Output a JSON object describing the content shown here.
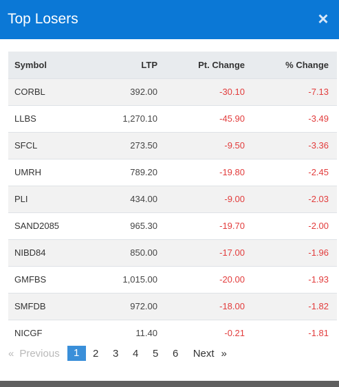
{
  "modal": {
    "title": "Top Losers",
    "close_glyph": "×"
  },
  "table": {
    "headers": {
      "symbol": "Symbol",
      "ltp": "LTP",
      "pt_change": "Pt. Change",
      "pct_change": "% Change"
    },
    "rows": [
      {
        "symbol": "CORBL",
        "ltp": "392.00",
        "pt_change": "-30.10",
        "pct_change": "-7.13"
      },
      {
        "symbol": "LLBS",
        "ltp": "1,270.10",
        "pt_change": "-45.90",
        "pct_change": "-3.49"
      },
      {
        "symbol": "SFCL",
        "ltp": "273.50",
        "pt_change": "-9.50",
        "pct_change": "-3.36"
      },
      {
        "symbol": "UMRH",
        "ltp": "789.20",
        "pt_change": "-19.80",
        "pct_change": "-2.45"
      },
      {
        "symbol": "PLI",
        "ltp": "434.00",
        "pt_change": "-9.00",
        "pct_change": "-2.03"
      },
      {
        "symbol": "SAND2085",
        "ltp": "965.30",
        "pt_change": "-19.70",
        "pct_change": "-2.00"
      },
      {
        "symbol": "NIBD84",
        "ltp": "850.00",
        "pt_change": "-17.00",
        "pct_change": "-1.96"
      },
      {
        "symbol": "GMFBS",
        "ltp": "1,015.00",
        "pt_change": "-20.00",
        "pct_change": "-1.93"
      },
      {
        "symbol": "SMFDB",
        "ltp": "972.00",
        "pt_change": "-18.00",
        "pct_change": "-1.82"
      },
      {
        "symbol": "NICGF",
        "ltp": "11.40",
        "pt_change": "-0.21",
        "pct_change": "-1.81"
      }
    ]
  },
  "pagination": {
    "prev_arrow": "«",
    "prev_label": "Previous",
    "pages": [
      "1",
      "2",
      "3",
      "4",
      "5",
      "6"
    ],
    "active_page": "1",
    "next_label": "Next",
    "next_arrow": "»"
  },
  "colors": {
    "header_bg": "#0b78d6",
    "negative": "#e23b3b",
    "active_page": "#3a8fd9"
  }
}
